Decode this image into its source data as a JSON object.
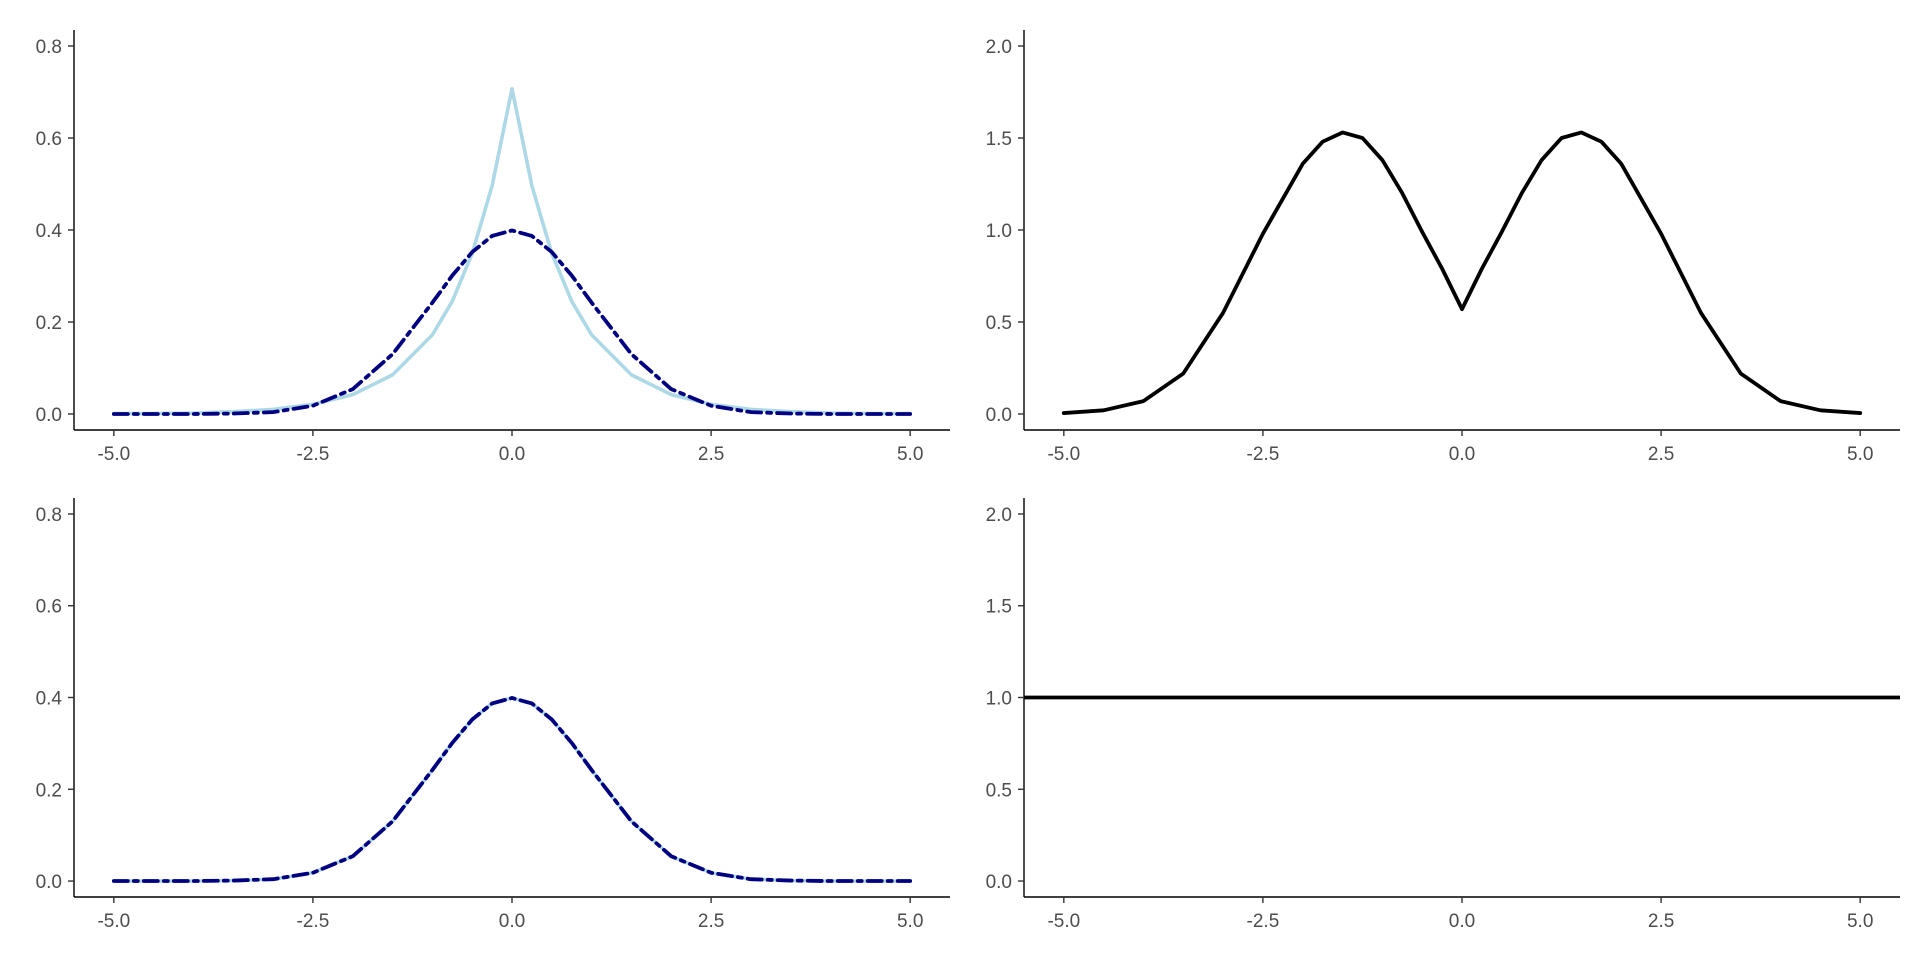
{
  "chart_data": [
    {
      "type": "line",
      "panel": "top-left",
      "xlim": [
        -5,
        5
      ],
      "ylim": [
        0,
        0.8
      ],
      "x_ticks": [
        "-5.0",
        "-2.5",
        "0.0",
        "2.5",
        "5.0"
      ],
      "y_ticks": [
        "0.0",
        "0.2",
        "0.4",
        "0.6",
        "0.8"
      ],
      "grid": false,
      "series": [
        {
          "color": "#add8e6",
          "linestyle": "solid",
          "x": [
            -5,
            -4.5,
            -4,
            -3.5,
            -3,
            -2.5,
            -2,
            -1.5,
            -1,
            -0.75,
            -0.5,
            -0.25,
            0,
            0.25,
            0.5,
            0.75,
            1,
            1.5,
            2,
            2.5,
            3,
            3.5,
            4,
            4.5,
            5
          ],
          "y": [
            0.001,
            0.001,
            0.002,
            0.005,
            0.01,
            0.021,
            0.042,
            0.085,
            0.172,
            0.245,
            0.349,
            0.496,
            0.707,
            0.496,
            0.349,
            0.245,
            0.172,
            0.085,
            0.042,
            0.021,
            0.01,
            0.005,
            0.002,
            0.001,
            0.001
          ]
        },
        {
          "color": "#000080",
          "linestyle": "dashdot",
          "x": [
            -5,
            -4.5,
            -4,
            -3.5,
            -3,
            -2.5,
            -2,
            -1.5,
            -1,
            -0.75,
            -0.5,
            -0.25,
            0,
            0.25,
            0.5,
            0.75,
            1,
            1.5,
            2,
            2.5,
            3,
            3.5,
            4,
            4.5,
            5
          ],
          "y": [
            0.0,
            0.0,
            0.0,
            0.001,
            0.004,
            0.018,
            0.054,
            0.13,
            0.242,
            0.301,
            0.352,
            0.387,
            0.399,
            0.387,
            0.352,
            0.301,
            0.242,
            0.13,
            0.054,
            0.018,
            0.004,
            0.001,
            0.0,
            0.0,
            0.0
          ]
        }
      ]
    },
    {
      "type": "line",
      "panel": "top-right",
      "xlim": [
        -5,
        5
      ],
      "ylim": [
        0,
        2
      ],
      "x_ticks": [
        "-5.0",
        "-2.5",
        "0.0",
        "2.5",
        "5.0"
      ],
      "y_ticks": [
        "0.0",
        "0.5",
        "1.0",
        "1.5",
        "2.0"
      ],
      "grid": false,
      "series": [
        {
          "color": "#000000",
          "linestyle": "solid",
          "x": [
            -5,
            -4.5,
            -4,
            -3.5,
            -3,
            -2.5,
            -2,
            -1.75,
            -1.5,
            -1.25,
            -1,
            -0.75,
            -0.5,
            -0.25,
            0,
            0.25,
            0.5,
            0.75,
            1,
            1.25,
            1.5,
            1.75,
            2,
            2.5,
            3,
            3.5,
            4,
            4.5,
            5
          ],
          "y": [
            0.005,
            0.02,
            0.07,
            0.22,
            0.55,
            0.98,
            1.36,
            1.48,
            1.53,
            1.5,
            1.38,
            1.2,
            0.99,
            0.79,
            0.57,
            0.79,
            0.99,
            1.2,
            1.38,
            1.5,
            1.53,
            1.48,
            1.36,
            0.98,
            0.55,
            0.22,
            0.07,
            0.02,
            0.005
          ]
        }
      ]
    },
    {
      "type": "line",
      "panel": "bottom-left",
      "xlim": [
        -5,
        5
      ],
      "ylim": [
        0,
        0.8
      ],
      "x_ticks": [
        "-5.0",
        "-2.5",
        "0.0",
        "2.5",
        "5.0"
      ],
      "y_ticks": [
        "0.0",
        "0.2",
        "0.4",
        "0.6",
        "0.8"
      ],
      "grid": false,
      "series": [
        {
          "color": "#add8e6",
          "linestyle": "solid",
          "x": [
            -5,
            -4.5,
            -4,
            -3.5,
            -3,
            -2.5,
            -2,
            -1.5,
            -1,
            -0.75,
            -0.5,
            -0.25,
            0,
            0.25,
            0.5,
            0.75,
            1,
            1.5,
            2,
            2.5,
            3,
            3.5,
            4,
            4.5,
            5
          ],
          "y": [
            0.0,
            0.0,
            0.0,
            0.001,
            0.004,
            0.018,
            0.054,
            0.13,
            0.242,
            0.301,
            0.352,
            0.387,
            0.399,
            0.387,
            0.352,
            0.301,
            0.242,
            0.13,
            0.054,
            0.018,
            0.004,
            0.001,
            0.0,
            0.0,
            0.0
          ]
        },
        {
          "color": "#000080",
          "linestyle": "dashdot",
          "x": [
            -5,
            -4.5,
            -4,
            -3.5,
            -3,
            -2.5,
            -2,
            -1.5,
            -1,
            -0.75,
            -0.5,
            -0.25,
            0,
            0.25,
            0.5,
            0.75,
            1,
            1.5,
            2,
            2.5,
            3,
            3.5,
            4,
            4.5,
            5
          ],
          "y": [
            0.0,
            0.0,
            0.0,
            0.001,
            0.004,
            0.018,
            0.054,
            0.13,
            0.242,
            0.301,
            0.352,
            0.387,
            0.399,
            0.387,
            0.352,
            0.301,
            0.242,
            0.13,
            0.054,
            0.018,
            0.004,
            0.001,
            0.0,
            0.0,
            0.0
          ]
        }
      ]
    },
    {
      "type": "line",
      "panel": "bottom-right",
      "xlim": [
        -5,
        5
      ],
      "ylim": [
        0,
        2
      ],
      "x_ticks": [
        "-5.0",
        "-2.5",
        "0.0",
        "2.5",
        "5.0"
      ],
      "y_ticks": [
        "0.0",
        "0.5",
        "1.0",
        "1.5",
        "2.0"
      ],
      "grid": false,
      "series": [
        {
          "color": "#000000",
          "linestyle": "solid",
          "x": [
            -5.5,
            5.5
          ],
          "y": [
            1.0,
            1.0
          ]
        }
      ]
    }
  ]
}
